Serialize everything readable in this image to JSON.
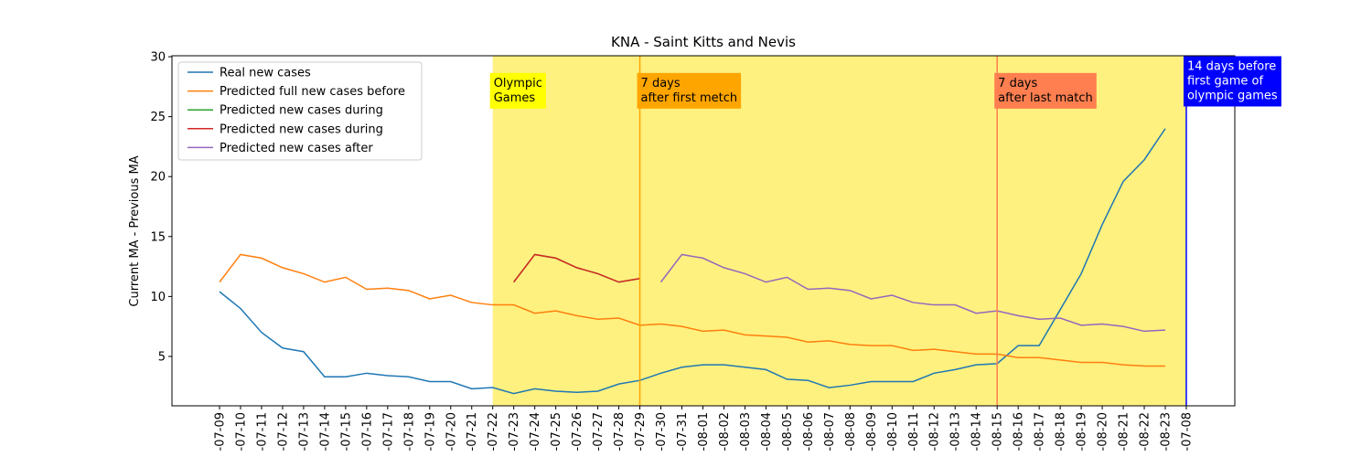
{
  "chart_data": {
    "type": "line",
    "title": "KNA - Saint Kitts and Nevis",
    "y_label": "Current MA - Previous MA",
    "categories": [
      "-07-09",
      "-07-10",
      "-07-11",
      "-07-12",
      "-07-13",
      "-07-14",
      "-07-15",
      "-07-16",
      "-07-17",
      "-07-18",
      "-07-19",
      "-07-20",
      "-07-21",
      "-07-22",
      "-07-23",
      "-07-24",
      "-07-25",
      "-07-26",
      "-07-27",
      "-07-28",
      "-07-29",
      "-07-30",
      "-07-31",
      "-08-01",
      "-08-02",
      "-08-03",
      "-08-04",
      "-08-05",
      "-08-06",
      "-08-07",
      "-08-08",
      "-08-09",
      "-08-10",
      "-08-11",
      "-08-12",
      "-08-13",
      "-08-14",
      "-08-15",
      "-08-16",
      "-08-17",
      "-08-18",
      "-08-19",
      "-08-20",
      "-08-21",
      "-08-22",
      "-08-23",
      "-07-08"
    ],
    "series": [
      {
        "name": "Real new cases",
        "color": "#1f77b4",
        "values": [
          10.4,
          9.0,
          7.0,
          5.7,
          5.4,
          3.3,
          3.3,
          3.6,
          3.4,
          3.3,
          2.9,
          2.9,
          2.3,
          2.4,
          1.9,
          2.3,
          2.1,
          2.0,
          2.1,
          2.7,
          3.0,
          3.6,
          4.1,
          4.3,
          4.3,
          4.1,
          3.9,
          3.1,
          3.0,
          2.4,
          2.6,
          2.9,
          2.9,
          2.9,
          3.6,
          3.9,
          4.3,
          4.4,
          5.9,
          5.9,
          8.9,
          11.9,
          16.0,
          19.6,
          21.4,
          24.0,
          null
        ]
      },
      {
        "name": "Predicted full new cases before",
        "color": "#ff7f0e",
        "values": [
          11.2,
          13.5,
          13.2,
          12.4,
          11.9,
          11.2,
          11.6,
          10.6,
          10.7,
          10.5,
          9.8,
          10.1,
          9.5,
          9.3,
          9.3,
          8.6,
          8.8,
          8.4,
          8.1,
          8.2,
          7.6,
          7.7,
          7.5,
          7.1,
          7.2,
          6.8,
          6.7,
          6.6,
          6.2,
          6.3,
          6.0,
          5.9,
          5.9,
          5.5,
          5.6,
          5.4,
          5.2,
          5.2,
          4.9,
          4.9,
          4.7,
          4.5,
          4.5,
          4.3,
          4.2,
          4.2,
          null
        ]
      },
      {
        "name": "Predicted new cases during",
        "color": "#2ca02c",
        "values": [
          null,
          null,
          null,
          null,
          null,
          null,
          null,
          null,
          null,
          null,
          null,
          null,
          null,
          null,
          11.2,
          13.5,
          13.2,
          12.4,
          11.9,
          11.2,
          11.5,
          null,
          null,
          null,
          null,
          null,
          null,
          null,
          null,
          null,
          null,
          null,
          null,
          null,
          null,
          null,
          null,
          null,
          null,
          null,
          null,
          null,
          null,
          null,
          null,
          null,
          null
        ]
      },
      {
        "name": "Predicted new cases during",
        "color": "#d62728",
        "values": [
          null,
          null,
          null,
          null,
          null,
          null,
          null,
          null,
          null,
          null,
          null,
          null,
          null,
          null,
          11.2,
          13.5,
          13.2,
          12.4,
          11.9,
          11.2,
          11.5,
          null,
          null,
          null,
          null,
          null,
          null,
          null,
          null,
          null,
          null,
          null,
          null,
          null,
          null,
          null,
          null,
          null,
          null,
          null,
          null,
          null,
          null,
          null,
          null,
          null,
          null
        ]
      },
      {
        "name": "Predicted new cases after",
        "color": "#9467bd",
        "values": [
          null,
          null,
          null,
          null,
          null,
          null,
          null,
          null,
          null,
          null,
          null,
          null,
          null,
          null,
          null,
          null,
          null,
          null,
          null,
          null,
          null,
          11.2,
          13.5,
          13.2,
          12.4,
          11.9,
          11.2,
          11.6,
          10.6,
          10.7,
          10.5,
          9.8,
          10.1,
          9.5,
          9.3,
          9.3,
          8.6,
          8.8,
          8.4,
          8.1,
          8.2,
          7.6,
          7.7,
          7.5,
          7.1,
          7.2,
          null
        ]
      }
    ],
    "ylim": [
      0.88,
      30.08
    ],
    "yticks": [
      5,
      10,
      15,
      20,
      25,
      30
    ],
    "legend": "upper left",
    "span": {
      "from": "-07-22",
      "to": "-07-08",
      "color": "#fff17f"
    },
    "vlines": [
      {
        "x": "-07-29",
        "color": "#ffa500"
      },
      {
        "x": "-08-15",
        "color": "#ff7f50"
      },
      {
        "x": "-07-08",
        "color": "#0000ff"
      }
    ],
    "annotations": [
      {
        "x": "-07-22",
        "y": 27.5,
        "text": "Olympic\nGames",
        "background": "#ffff00",
        "color": "#000000"
      },
      {
        "x": "-07-29",
        "y": 27.5,
        "text": "7 days\nafter first metch",
        "background": "#ffa500",
        "color": "#000000"
      },
      {
        "x": "-08-15",
        "y": 27.5,
        "text": "7 days\nafter last match",
        "background": "#ff7f50",
        "color": "#000000"
      },
      {
        "x": "-07-08",
        "y": 28.9,
        "text": "14 days before\nfirst game of\nolympic games",
        "background": "#0000ff",
        "color": "#ffffff"
      }
    ]
  }
}
